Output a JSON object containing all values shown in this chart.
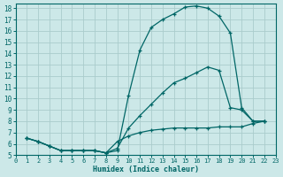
{
  "xlabel": "Humidex (Indice chaleur)",
  "bg_color": "#cce8e8",
  "grid_color": "#aacccc",
  "line_color": "#006666",
  "xlim": [
    0,
    23
  ],
  "ylim": [
    5,
    18.4
  ],
  "yticks": [
    5,
    6,
    7,
    8,
    9,
    10,
    11,
    12,
    13,
    14,
    15,
    16,
    17,
    18
  ],
  "xticks": [
    0,
    1,
    2,
    3,
    4,
    5,
    6,
    7,
    8,
    9,
    10,
    11,
    12,
    13,
    14,
    15,
    16,
    17,
    18,
    19,
    20,
    21,
    22,
    23
  ],
  "line1_x": [
    1,
    2,
    3,
    4,
    5,
    6,
    7,
    8,
    9,
    10,
    11,
    12,
    13,
    14,
    15,
    16,
    17,
    18,
    19,
    20,
    21,
    22
  ],
  "line1_y": [
    6.5,
    6.2,
    5.8,
    5.4,
    5.4,
    5.4,
    5.4,
    5.2,
    5.4,
    10.3,
    14.3,
    16.3,
    17.0,
    17.5,
    18.1,
    18.2,
    18.0,
    17.3,
    15.8,
    9.2,
    8.0,
    8.0
  ],
  "line2_x": [
    1,
    2,
    3,
    4,
    5,
    6,
    7,
    8,
    9,
    10,
    11,
    12,
    13,
    14,
    15,
    16,
    17,
    18,
    19,
    20,
    21,
    22
  ],
  "line2_y": [
    6.5,
    6.2,
    5.8,
    5.4,
    5.4,
    5.4,
    5.4,
    5.2,
    5.6,
    7.4,
    8.5,
    9.5,
    10.5,
    11.4,
    11.8,
    12.3,
    12.8,
    12.5,
    9.2,
    9.0,
    8.0,
    8.0
  ],
  "line3_x": [
    1,
    2,
    3,
    4,
    5,
    6,
    7,
    8,
    9,
    10,
    11,
    12,
    13,
    14,
    15,
    16,
    17,
    18,
    19,
    20,
    21,
    22
  ],
  "line3_y": [
    6.5,
    6.2,
    5.8,
    5.4,
    5.4,
    5.4,
    5.4,
    5.2,
    6.2,
    6.7,
    7.0,
    7.2,
    7.3,
    7.4,
    7.4,
    7.4,
    7.4,
    7.5,
    7.5,
    7.5,
    7.8,
    8.0
  ]
}
